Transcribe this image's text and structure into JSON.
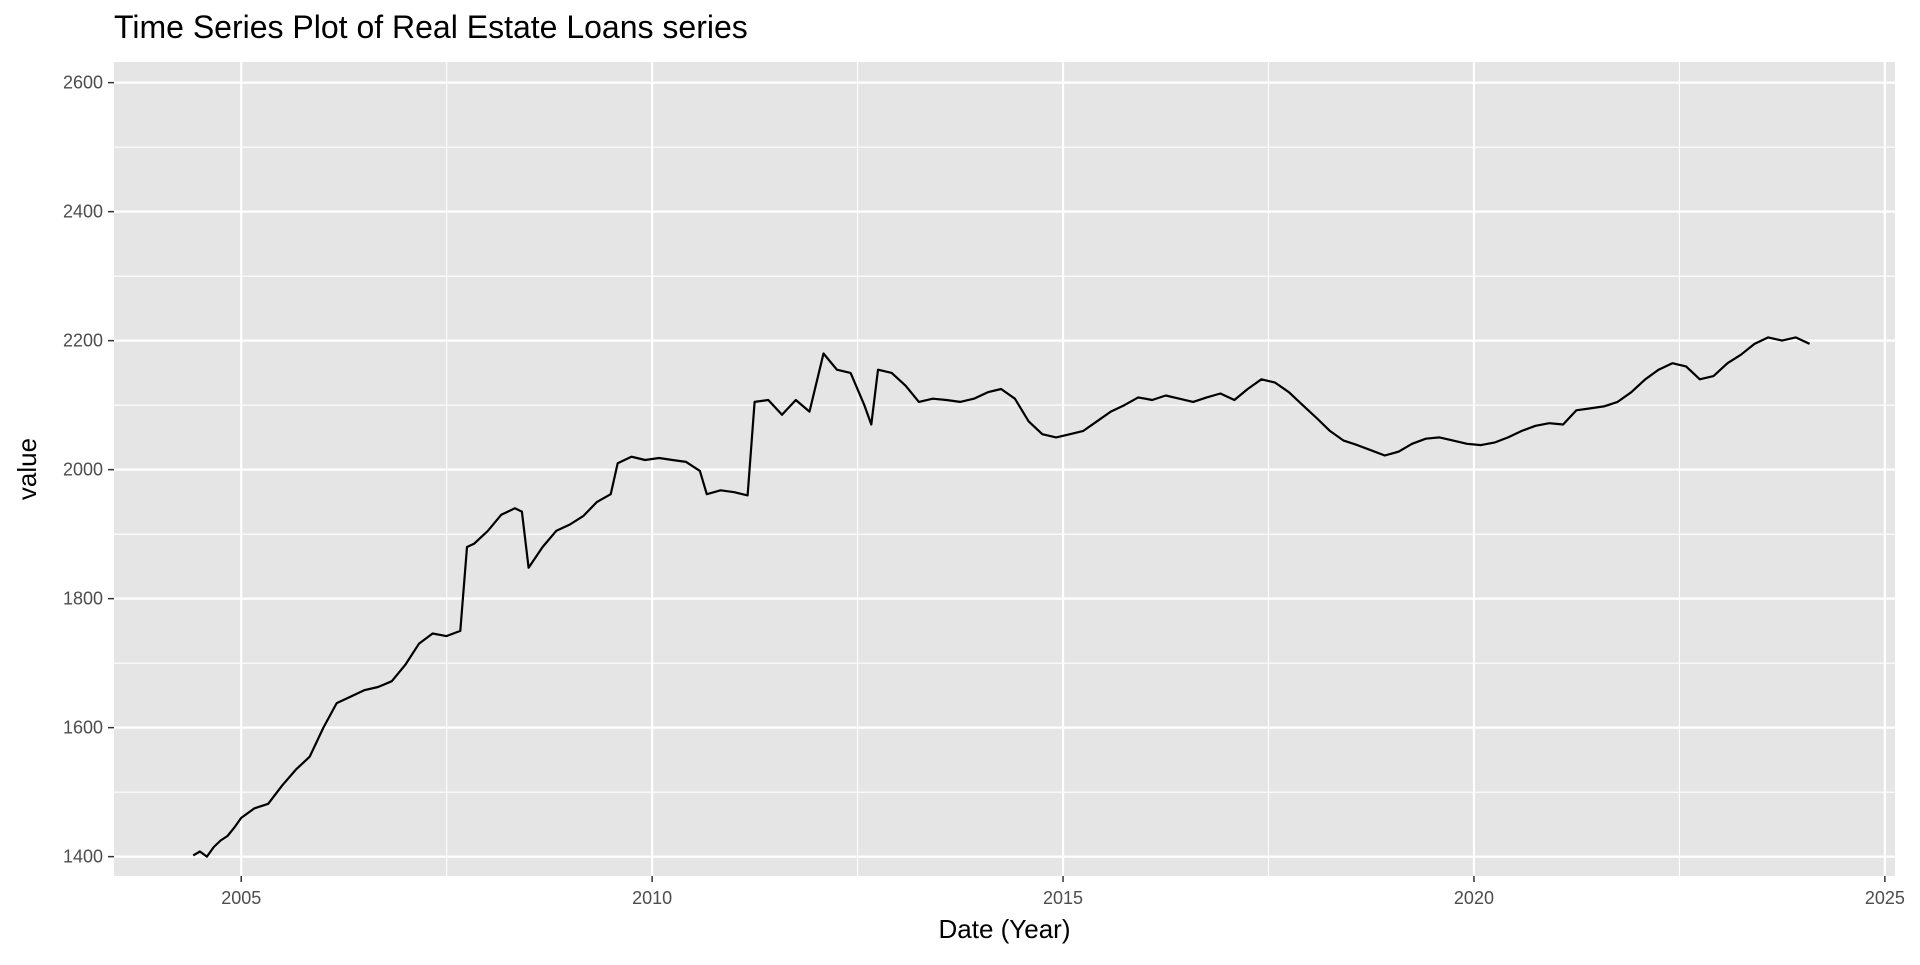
{
  "chart_data": {
    "type": "line",
    "title": "Time Series Plot of Real Estate Loans series",
    "xlabel": "Date (Year)",
    "ylabel": "value",
    "x_ticks": [
      "2005",
      "2010",
      "2015",
      "2020",
      "2025"
    ],
    "y_ticks": [
      "1400",
      "1600",
      "1800",
      "2000",
      "2200",
      "2400",
      "2600"
    ],
    "xlim": [
      "2003-06-15",
      "2025-02-15"
    ],
    "ylim": [
      1370,
      2632
    ],
    "grid": true,
    "background": "#e5e5e5",
    "grid_color": "#ffffff",
    "line_color": "#000000",
    "series": [
      {
        "points": [
          [
            "2004-06-01",
            1402
          ],
          [
            "2004-07-01",
            1408
          ],
          [
            "2004-08-01",
            1400
          ],
          [
            "2004-09-01",
            1415
          ],
          [
            "2004-10-01",
            1425
          ],
          [
            "2004-11-01",
            1432
          ],
          [
            "2004-12-01",
            1445
          ],
          [
            "2005-01-01",
            1460
          ],
          [
            "2005-03-01",
            1475
          ],
          [
            "2005-05-01",
            1482
          ],
          [
            "2005-07-01",
            1510
          ],
          [
            "2005-09-01",
            1535
          ],
          [
            "2005-11-01",
            1555
          ],
          [
            "2006-01-01",
            1600
          ],
          [
            "2006-03-01",
            1638
          ],
          [
            "2006-05-01",
            1648
          ],
          [
            "2006-07-01",
            1658
          ],
          [
            "2006-09-01",
            1663
          ],
          [
            "2006-11-01",
            1672
          ],
          [
            "2007-01-01",
            1698
          ],
          [
            "2007-03-01",
            1730
          ],
          [
            "2007-05-01",
            1746
          ],
          [
            "2007-07-01",
            1742
          ],
          [
            "2007-09-01",
            1750
          ],
          [
            "2007-10-01",
            1880
          ],
          [
            "2007-11-01",
            1885
          ],
          [
            "2008-01-01",
            1905
          ],
          [
            "2008-03-01",
            1930
          ],
          [
            "2008-05-01",
            1940
          ],
          [
            "2008-06-01",
            1935
          ],
          [
            "2008-07-01",
            1848
          ],
          [
            "2008-09-01",
            1880
          ],
          [
            "2008-11-01",
            1905
          ],
          [
            "2009-01-01",
            1915
          ],
          [
            "2009-03-01",
            1928
          ],
          [
            "2009-05-01",
            1950
          ],
          [
            "2009-07-01",
            1962
          ],
          [
            "2009-08-01",
            2010
          ],
          [
            "2009-10-01",
            2020
          ],
          [
            "2009-12-01",
            2015
          ],
          [
            "2010-02-01",
            2018
          ],
          [
            "2010-04-01",
            2015
          ],
          [
            "2010-06-01",
            2012
          ],
          [
            "2010-08-01",
            1998
          ],
          [
            "2010-09-01",
            1962
          ],
          [
            "2010-11-01",
            1968
          ],
          [
            "2011-01-01",
            1965
          ],
          [
            "2011-03-01",
            1960
          ],
          [
            "2011-04-01",
            2105
          ],
          [
            "2011-06-01",
            2108
          ],
          [
            "2011-08-01",
            2085
          ],
          [
            "2011-10-01",
            2108
          ],
          [
            "2011-12-01",
            2090
          ],
          [
            "2012-02-01",
            2180
          ],
          [
            "2012-04-01",
            2155
          ],
          [
            "2012-06-01",
            2150
          ],
          [
            "2012-08-01",
            2100
          ],
          [
            "2012-09-01",
            2070
          ],
          [
            "2012-10-01",
            2155
          ],
          [
            "2012-12-01",
            2150
          ],
          [
            "2013-02-01",
            2130
          ],
          [
            "2013-04-01",
            2105
          ],
          [
            "2013-06-01",
            2110
          ],
          [
            "2013-08-01",
            2108
          ],
          [
            "2013-10-01",
            2105
          ],
          [
            "2013-12-01",
            2110
          ],
          [
            "2014-02-01",
            2120
          ],
          [
            "2014-04-01",
            2125
          ],
          [
            "2014-06-01",
            2110
          ],
          [
            "2014-08-01",
            2075
          ],
          [
            "2014-10-01",
            2055
          ],
          [
            "2014-12-01",
            2050
          ],
          [
            "2015-02-01",
            2055
          ],
          [
            "2015-04-01",
            2060
          ],
          [
            "2015-06-01",
            2075
          ],
          [
            "2015-08-01",
            2090
          ],
          [
            "2015-10-01",
            2100
          ],
          [
            "2015-12-01",
            2112
          ],
          [
            "2016-02-01",
            2108
          ],
          [
            "2016-04-01",
            2115
          ],
          [
            "2016-06-01",
            2110
          ],
          [
            "2016-08-01",
            2105
          ],
          [
            "2016-10-01",
            2112
          ],
          [
            "2016-12-01",
            2118
          ],
          [
            "2017-02-01",
            2108
          ],
          [
            "2017-04-01",
            2125
          ],
          [
            "2017-06-01",
            2140
          ],
          [
            "2017-08-01",
            2135
          ],
          [
            "2017-10-01",
            2120
          ],
          [
            "2017-12-01",
            2100
          ],
          [
            "2018-02-01",
            2080
          ],
          [
            "2018-04-01",
            2060
          ],
          [
            "2018-06-01",
            2045
          ],
          [
            "2018-08-01",
            2038
          ],
          [
            "2018-10-01",
            2030
          ],
          [
            "2018-12-01",
            2022
          ],
          [
            "2019-02-01",
            2028
          ],
          [
            "2019-04-01",
            2040
          ],
          [
            "2019-06-01",
            2048
          ],
          [
            "2019-08-01",
            2050
          ],
          [
            "2019-10-01",
            2045
          ],
          [
            "2019-12-01",
            2040
          ],
          [
            "2020-02-01",
            2038
          ],
          [
            "2020-04-01",
            2042
          ],
          [
            "2020-06-01",
            2050
          ],
          [
            "2020-08-01",
            2060
          ],
          [
            "2020-10-01",
            2068
          ],
          [
            "2020-12-01",
            2072
          ],
          [
            "2021-02-01",
            2070
          ],
          [
            "2021-04-01",
            2092
          ],
          [
            "2021-06-01",
            2095
          ],
          [
            "2021-08-01",
            2098
          ],
          [
            "2021-10-01",
            2105
          ],
          [
            "2021-12-01",
            2120
          ],
          [
            "2022-02-01",
            2140
          ],
          [
            "2022-04-01",
            2155
          ],
          [
            "2022-06-01",
            2165
          ],
          [
            "2022-08-01",
            2160
          ],
          [
            "2022-10-01",
            2140
          ],
          [
            "2022-12-01",
            2145
          ],
          [
            "2023-02-01",
            2165
          ],
          [
            "2023-04-01",
            2178
          ],
          [
            "2023-06-01",
            2195
          ],
          [
            "2023-08-01",
            2205
          ],
          [
            "2023-10-01",
            2200
          ],
          [
            "2023-12-01",
            2205
          ],
          [
            "2024-02-01",
            2195
          ]
        ]
      }
    ]
  }
}
